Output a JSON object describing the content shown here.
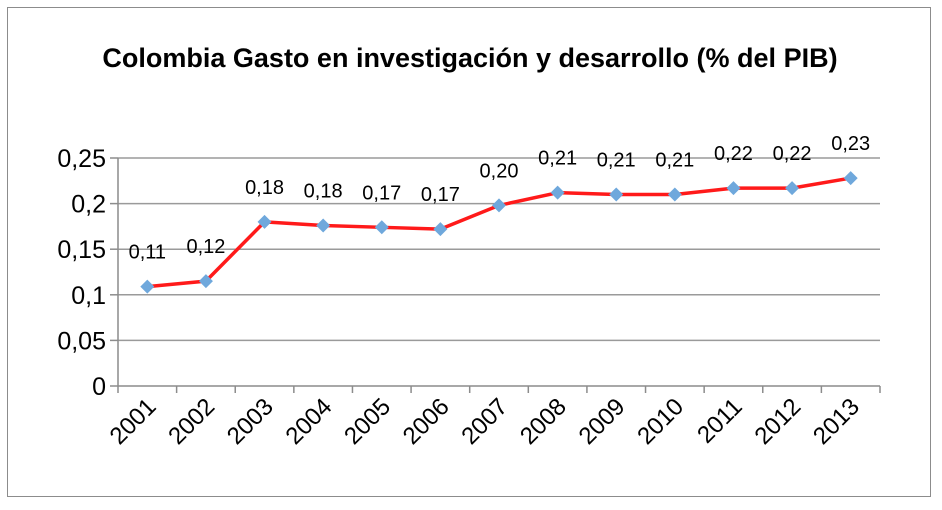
{
  "chart_data": {
    "type": "line",
    "title": "Colombia Gasto en investigación y desarrollo (% del PIB)",
    "categories": [
      "2001",
      "2002",
      "2003",
      "2004",
      "2005",
      "2006",
      "2007",
      "2008",
      "2009",
      "2010",
      "2011",
      "2012",
      "2013"
    ],
    "values": [
      0.109,
      0.115,
      0.18,
      0.176,
      0.174,
      0.172,
      0.198,
      0.212,
      0.21,
      0.21,
      0.217,
      0.217,
      0.228
    ],
    "data_labels": [
      "0,11",
      "0,12",
      "0,18",
      "0,18",
      "0,17",
      "0,17",
      "0,20",
      "0,21",
      "0,21",
      "0,21",
      "0,22",
      "0,22",
      "0,23"
    ],
    "yticks": [
      "0",
      "0,05",
      "0,1",
      "0,15",
      "0,2",
      "0,25"
    ],
    "ytick_values": [
      0,
      0.05,
      0.1,
      0.15,
      0.2,
      0.25
    ],
    "ylim": [
      0,
      0.25
    ],
    "grid": true,
    "legend": "none",
    "line_color": "#ff1a1a",
    "marker_color": "#6fa8dc",
    "marker": "diamond"
  }
}
